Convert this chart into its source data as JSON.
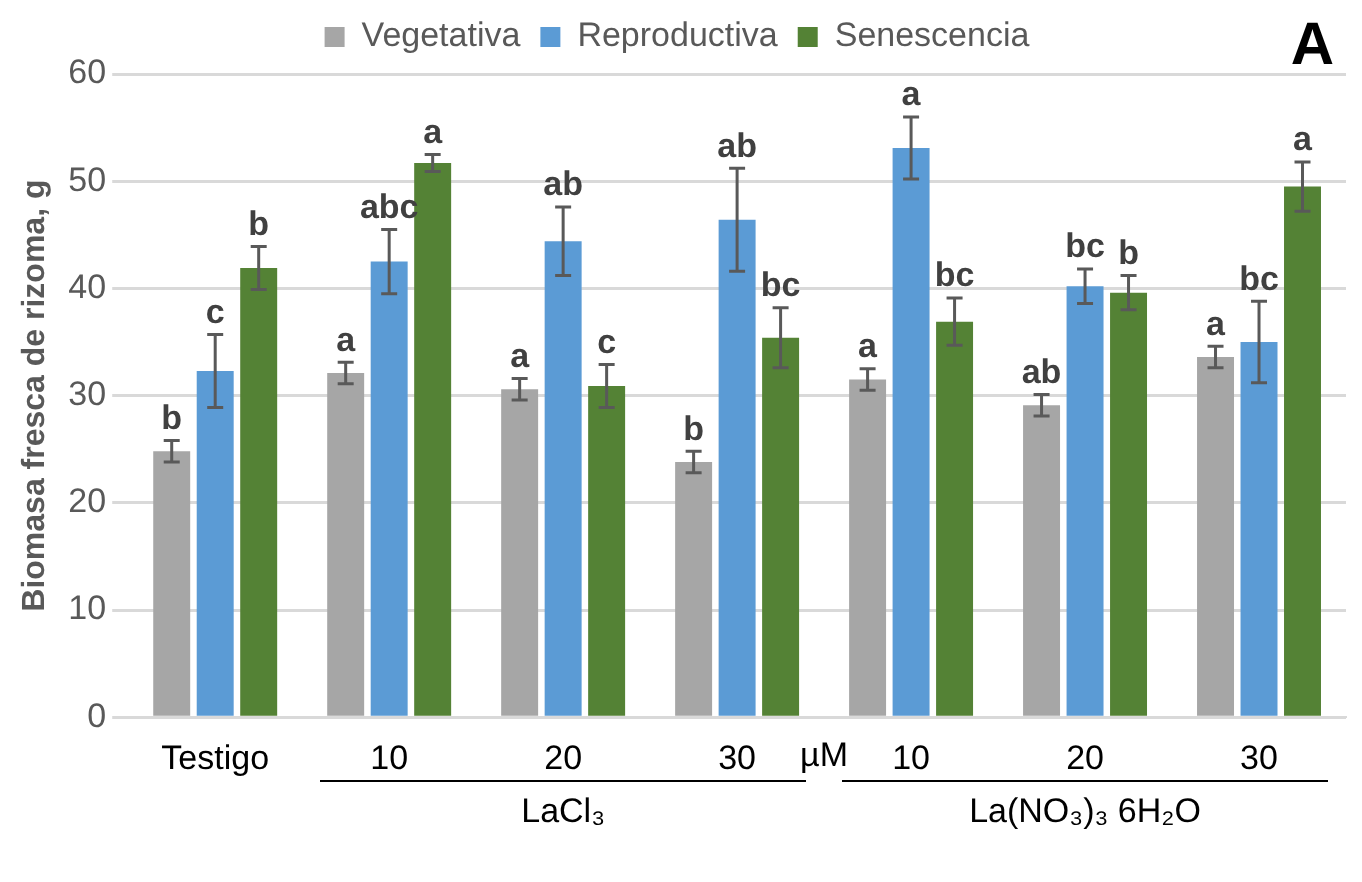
{
  "chart_data": {
    "type": "bar",
    "title": "A",
    "ylabel": "Biomasa fresca de rizoma, g",
    "categories": [
      "Testigo",
      "10",
      "20",
      "30",
      "10",
      "20",
      "30"
    ],
    "series": [
      {
        "name": "Vegetativa",
        "color": "#a6a6a6",
        "values": [
          24.8,
          32.1,
          30.6,
          23.8,
          31.5,
          29.1,
          33.6
        ],
        "errors": [
          1,
          1,
          1,
          1,
          1,
          1,
          1
        ],
        "value_labels": [
          "b",
          "a",
          "a",
          "b",
          "a",
          "ab",
          "a"
        ]
      },
      {
        "name": "Reproductiva",
        "color": "#5b9bd5",
        "values": [
          32.3,
          42.5,
          44.4,
          46.4,
          53.1,
          40.2,
          35
        ],
        "errors": [
          3.4,
          3,
          3.2,
          4.8,
          2.9,
          1.6,
          3.8
        ],
        "value_labels": [
          "c",
          "abc",
          "ab",
          "ab",
          "a",
          "bc",
          "bc"
        ]
      },
      {
        "name": "Senescencia",
        "color": "#548235",
        "values": [
          41.9,
          51.7,
          30.9,
          35.4,
          36.9,
          39.6,
          49.5
        ],
        "errors": [
          2,
          0.8,
          2,
          2.8,
          2.2,
          1.6,
          2.3
        ],
        "value_labels": [
          "b",
          "a",
          "c",
          "bc",
          "bc",
          "b",
          "a"
        ]
      }
    ],
    "ylim": [
      0,
      60
    ],
    "yticks": [
      0,
      10,
      20,
      30,
      40,
      50,
      60
    ],
    "grid": "y",
    "legend": "top",
    "annotations": [
      "µM",
      "LaCl₃",
      "La(NO₃)₃ 6H₂O"
    ]
  }
}
